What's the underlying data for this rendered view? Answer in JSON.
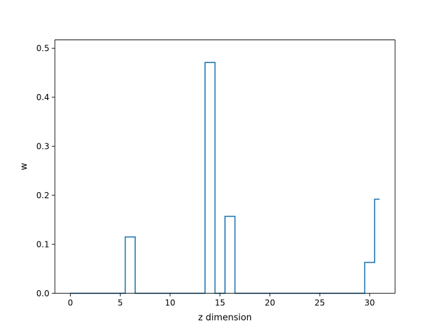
{
  "chart_data": {
    "type": "line",
    "drawstyle": "steps-mid",
    "title": "",
    "xlabel": "z dimension",
    "ylabel": "w",
    "xlim": [
      -1.55,
      32.55
    ],
    "ylim": [
      0,
      0.5172
    ],
    "xticks": [
      0,
      5,
      10,
      15,
      20,
      25,
      30
    ],
    "xtick_labels": [
      "0",
      "5",
      "10",
      "15",
      "20",
      "25",
      "30"
    ],
    "yticks": [
      0.0,
      0.1,
      0.2,
      0.3,
      0.4,
      0.5
    ],
    "ytick_labels": [
      "0.0",
      "0.1",
      "0.2",
      "0.3",
      "0.4",
      "0.5"
    ],
    "grid": false,
    "legend": "none",
    "series": [
      {
        "color": "#1f77b4",
        "x": [
          0,
          1,
          2,
          3,
          4,
          5,
          6,
          7,
          8,
          9,
          10,
          11,
          12,
          13,
          14,
          15,
          16,
          17,
          18,
          19,
          20,
          21,
          22,
          23,
          24,
          25,
          26,
          27,
          28,
          29,
          30,
          31
        ],
        "y": [
          0,
          0,
          0,
          0,
          0,
          0,
          0.115,
          0,
          0,
          0,
          0,
          0,
          0,
          0,
          0.471,
          0,
          0.157,
          0,
          0,
          0,
          0,
          0,
          0,
          0,
          0,
          0,
          0,
          0,
          0,
          0,
          0.063,
          0.192
        ]
      }
    ]
  }
}
